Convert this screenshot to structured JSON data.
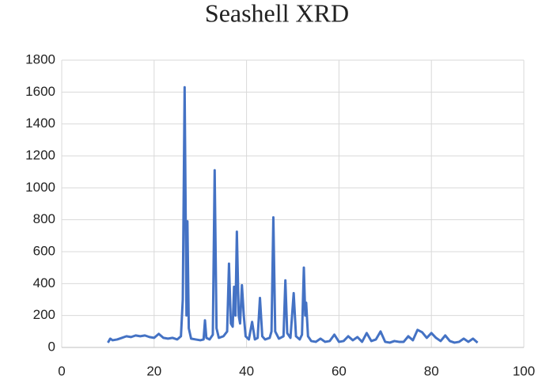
{
  "chart_data": {
    "type": "line",
    "title": "Seashell XRD",
    "x": [
      10,
      10.5,
      11,
      12,
      13,
      14,
      15,
      16,
      17,
      18,
      19,
      20,
      21,
      22,
      23,
      24,
      25,
      25.8,
      26.2,
      26.6,
      27.0,
      27.2,
      27.5,
      28,
      29,
      30,
      30.7,
      31,
      31.3,
      32,
      32.7,
      33.1,
      33.5,
      34,
      35,
      35.8,
      36.2,
      36.6,
      37,
      37.3,
      37.6,
      37.9,
      38.3,
      38.6,
      39,
      39.4,
      39.8,
      40.5,
      41.2,
      41.8,
      42.4,
      42.9,
      43.4,
      44,
      45,
      45.4,
      45.8,
      46.2,
      47,
      48,
      48.4,
      48.8,
      49.5,
      50.2,
      50.7,
      51.5,
      52,
      52.4,
      52.7,
      52.9,
      53.3,
      54,
      55,
      56,
      57,
      58,
      59,
      60,
      61,
      62,
      63,
      64,
      65,
      66,
      67,
      68,
      69,
      70,
      71,
      72,
      73,
      74,
      75,
      76,
      77,
      78,
      79,
      80,
      81,
      82,
      83,
      84,
      85,
      86,
      87,
      88,
      89,
      90
    ],
    "series": [
      {
        "name": "Seashell",
        "color": "#4472c4",
        "values": [
          30,
          55,
          45,
          50,
          60,
          70,
          65,
          75,
          70,
          75,
          65,
          60,
          85,
          60,
          55,
          60,
          50,
          70,
          300,
          1630,
          200,
          790,
          120,
          55,
          50,
          45,
          50,
          170,
          60,
          50,
          80,
          1110,
          120,
          60,
          70,
          100,
          525,
          150,
          130,
          380,
          200,
          725,
          200,
          150,
          390,
          200,
          70,
          50,
          160,
          50,
          60,
          310,
          70,
          50,
          60,
          100,
          815,
          100,
          55,
          70,
          420,
          90,
          60,
          340,
          70,
          50,
          80,
          500,
          200,
          280,
          70,
          40,
          35,
          55,
          35,
          40,
          80,
          35,
          40,
          70,
          45,
          65,
          35,
          90,
          40,
          50,
          100,
          35,
          30,
          40,
          35,
          35,
          70,
          45,
          110,
          95,
          60,
          90,
          60,
          40,
          75,
          40,
          30,
          35,
          55,
          35,
          55,
          30
        ]
      }
    ],
    "xlim": [
      0,
      100
    ],
    "xticks": [
      0,
      20,
      40,
      60,
      80,
      100
    ],
    "ylim": [
      0,
      1800
    ],
    "yticks": [
      0,
      200,
      400,
      600,
      800,
      1000,
      1200,
      1400,
      1600,
      1800
    ],
    "grid": true
  }
}
